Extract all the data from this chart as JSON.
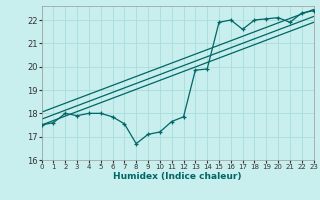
{
  "xlabel": "Humidex (Indice chaleur)",
  "bg_color": "#c8eeee",
  "grid_color": "#aadddd",
  "line_color": "#006666",
  "xlim": [
    0,
    23
  ],
  "ylim": [
    16,
    22.6
  ],
  "xticks": [
    0,
    1,
    2,
    3,
    4,
    5,
    6,
    7,
    8,
    9,
    10,
    11,
    12,
    13,
    14,
    15,
    16,
    17,
    18,
    19,
    20,
    21,
    22,
    23
  ],
  "yticks": [
    16,
    17,
    18,
    19,
    20,
    21,
    22
  ],
  "line1_x": [
    0,
    1,
    2,
    3,
    4,
    5,
    6,
    7,
    8,
    9,
    10,
    11,
    12,
    13,
    14,
    15,
    16,
    17,
    18,
    19,
    20,
    21,
    22,
    23
  ],
  "line1_y": [
    17.5,
    17.6,
    18.0,
    17.9,
    18.0,
    18.0,
    17.85,
    17.55,
    16.7,
    17.1,
    17.2,
    17.65,
    17.85,
    19.85,
    19.9,
    21.9,
    22.0,
    21.6,
    22.0,
    22.05,
    22.1,
    21.9,
    22.3,
    22.4
  ],
  "line2_x": [
    0,
    23
  ],
  "line2_y": [
    18.05,
    22.45
  ],
  "line3_x": [
    0,
    23
  ],
  "line3_y": [
    17.75,
    22.15
  ],
  "line4_x": [
    0,
    23
  ],
  "line4_y": [
    17.5,
    21.9
  ],
  "marker_x": [
    0,
    1,
    2,
    3,
    4,
    5,
    6,
    7,
    8,
    9,
    10,
    11,
    12,
    13,
    14,
    15,
    16,
    17,
    18,
    19,
    20,
    21,
    22,
    23
  ],
  "marker_y": [
    17.5,
    17.6,
    18.0,
    17.9,
    18.0,
    18.0,
    17.85,
    17.55,
    16.7,
    17.1,
    17.2,
    17.65,
    17.85,
    19.85,
    19.9,
    21.9,
    22.0,
    21.6,
    22.0,
    22.05,
    22.1,
    21.9,
    22.3,
    22.4
  ]
}
